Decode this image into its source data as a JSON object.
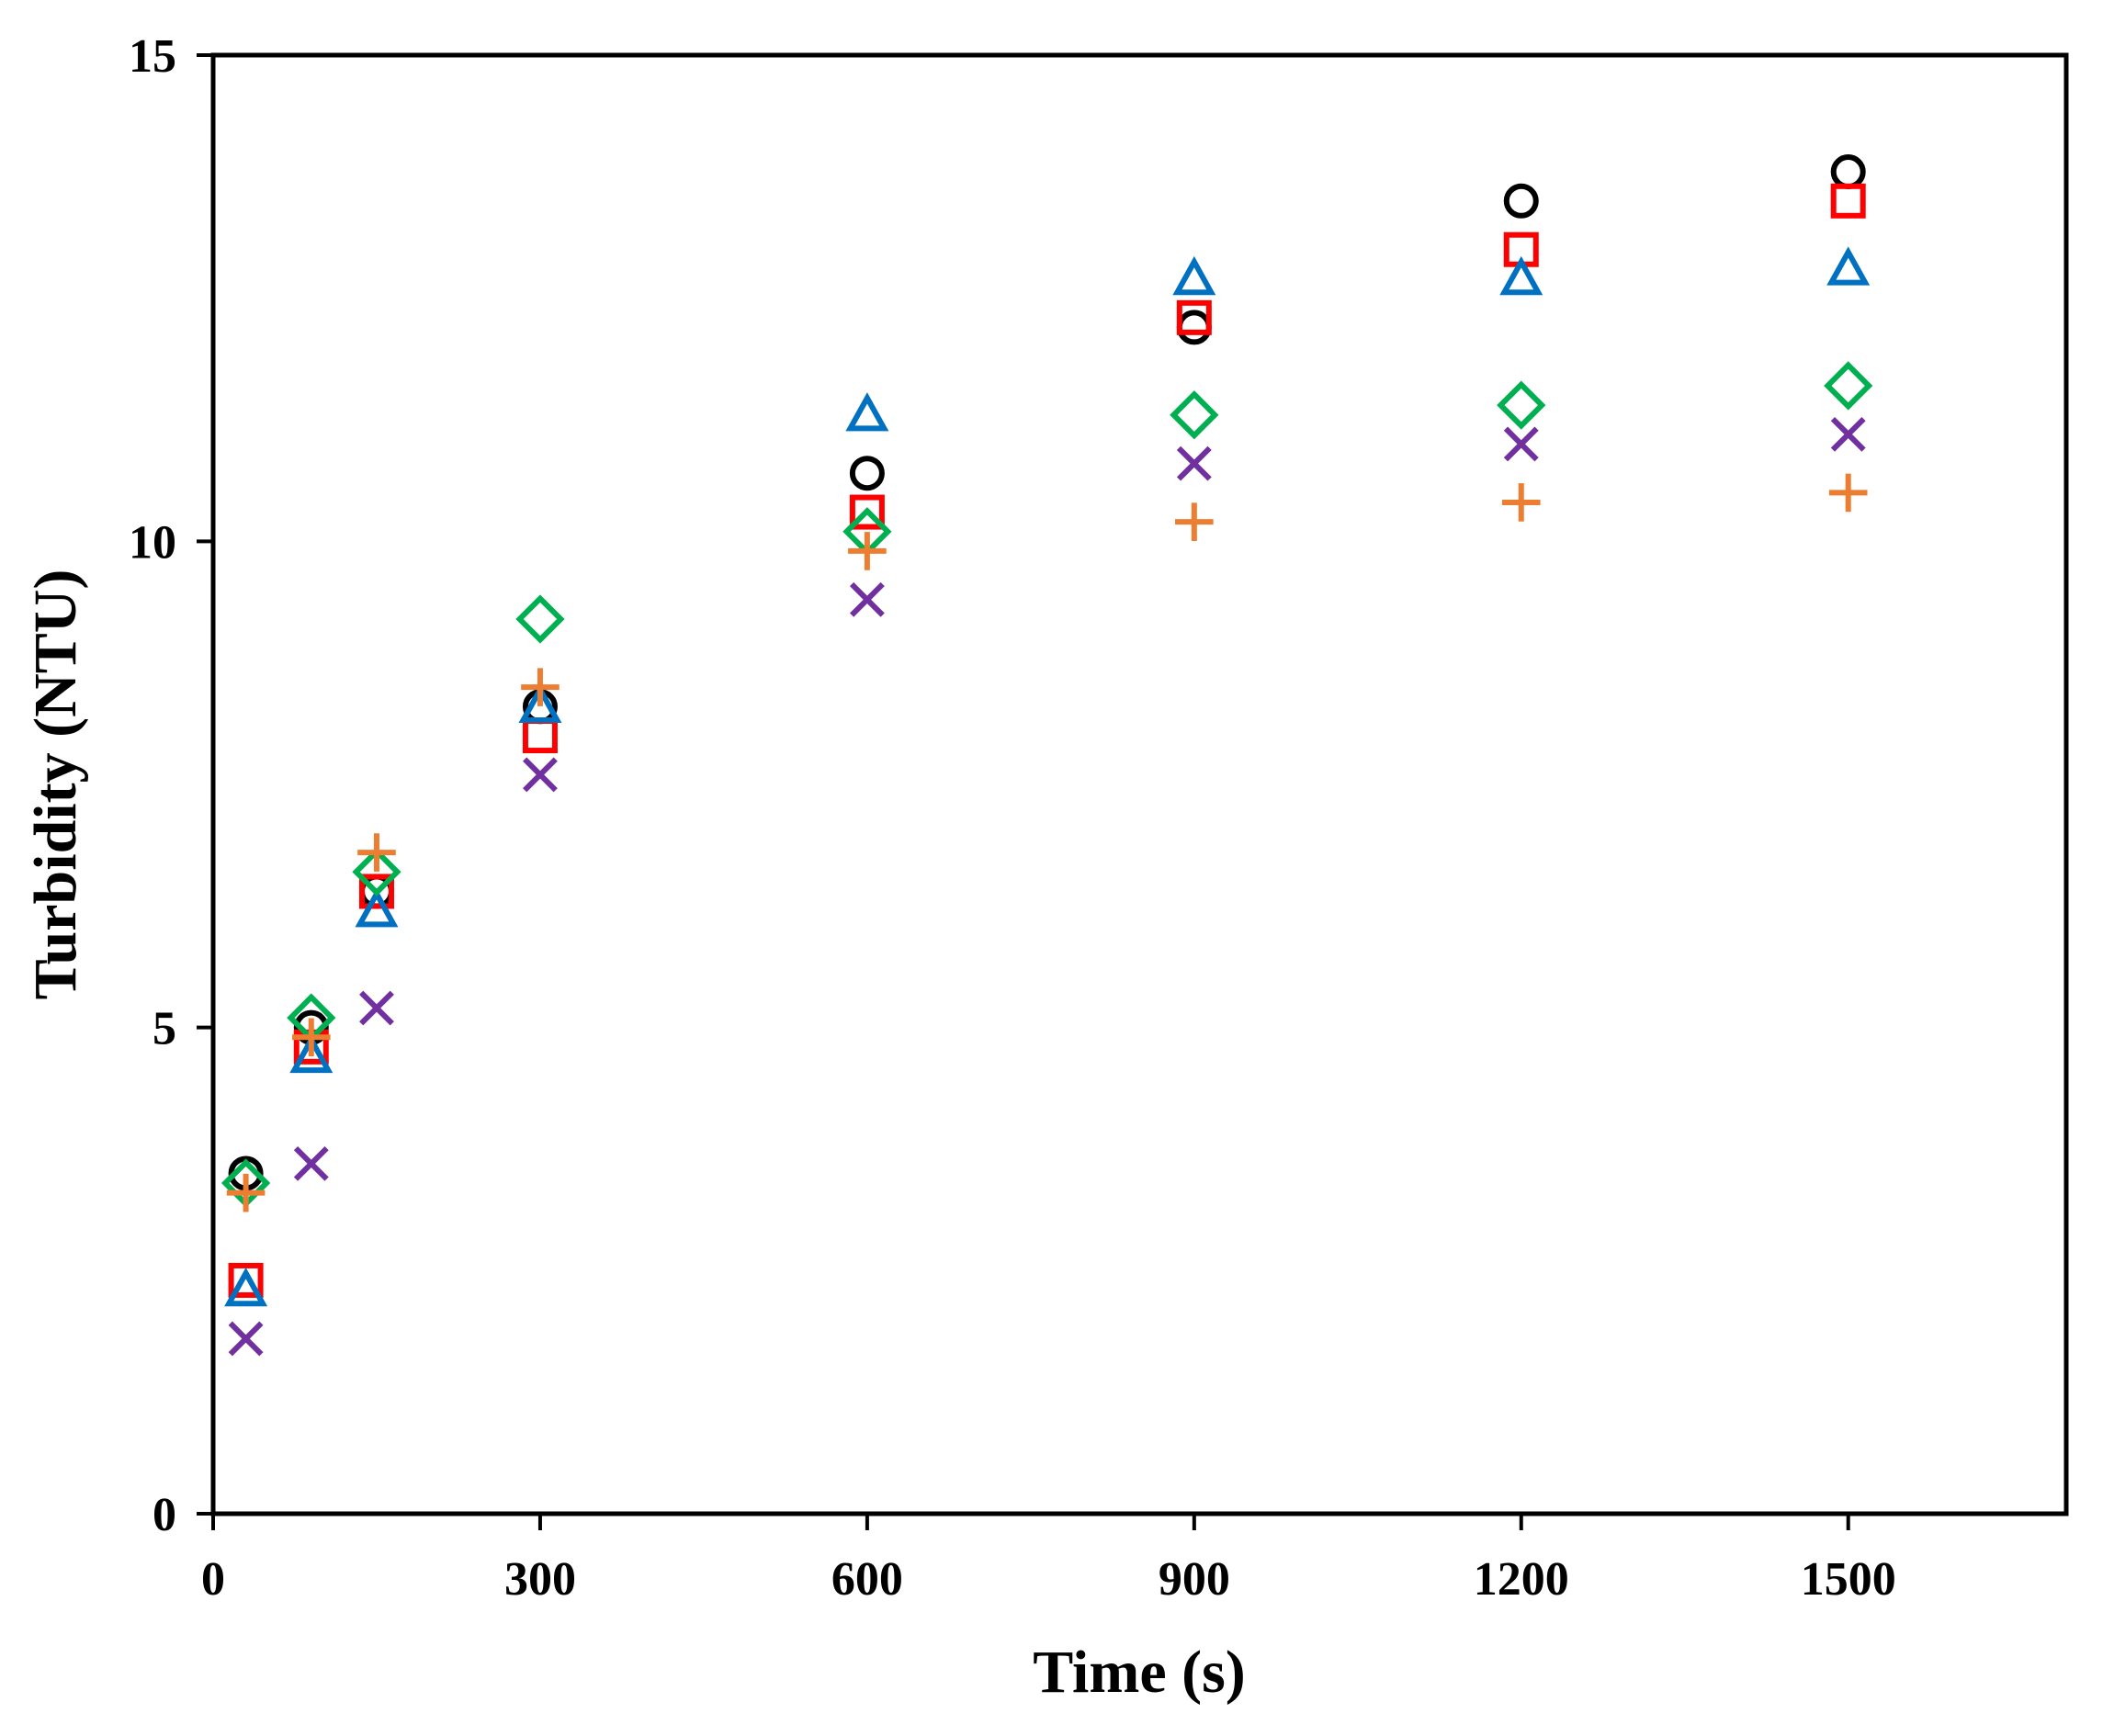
{
  "chart_data": {
    "type": "scatter",
    "title": "",
    "xlabel": "Time (s)",
    "ylabel": "Turbidity (NTU)",
    "xlim": [
      0,
      1700
    ],
    "ylim": [
      0,
      15
    ],
    "xticks": [
      0,
      300,
      600,
      900,
      1200,
      1500
    ],
    "yticks": [
      0,
      5,
      10,
      15
    ],
    "grid": false,
    "legend": false,
    "series": [
      {
        "marker": "circle",
        "color": "#000000",
        "x": [
          30,
          90,
          150,
          300,
          600,
          900,
          1200,
          1500
        ],
        "y": [
          3.5,
          5.0,
          6.4,
          8.3,
          10.7,
          12.2,
          13.5,
          13.8
        ]
      },
      {
        "marker": "square",
        "color": "#ff0000",
        "x": [
          30,
          90,
          150,
          300,
          600,
          900,
          1200,
          1500
        ],
        "y": [
          2.4,
          4.8,
          6.4,
          8.0,
          10.3,
          12.3,
          13.0,
          13.5
        ]
      },
      {
        "marker": "triangle",
        "color": "#0070c0",
        "x": [
          30,
          90,
          150,
          300,
          600,
          900,
          1200,
          1500
        ],
        "y": [
          2.3,
          4.7,
          6.2,
          8.3,
          11.3,
          12.7,
          12.7,
          12.8
        ]
      },
      {
        "marker": "diamond",
        "color": "#00b050",
        "x": [
          30,
          90,
          150,
          300,
          600,
          900,
          1200,
          1500
        ],
        "y": [
          3.4,
          5.1,
          6.6,
          9.2,
          10.1,
          11.3,
          11.4,
          11.6
        ]
      },
      {
        "marker": "x",
        "color": "#7030a0",
        "x": [
          30,
          90,
          150,
          300,
          600,
          900,
          1200,
          1500
        ],
        "y": [
          1.8,
          3.6,
          5.2,
          7.6,
          9.4,
          10.8,
          11.0,
          11.1
        ]
      },
      {
        "marker": "plus",
        "color": "#ed7d31",
        "x": [
          30,
          90,
          150,
          300,
          600,
          900,
          1200,
          1500
        ],
        "y": [
          3.3,
          4.9,
          6.8,
          8.5,
          9.9,
          10.2,
          10.4,
          10.5
        ]
      }
    ]
  }
}
